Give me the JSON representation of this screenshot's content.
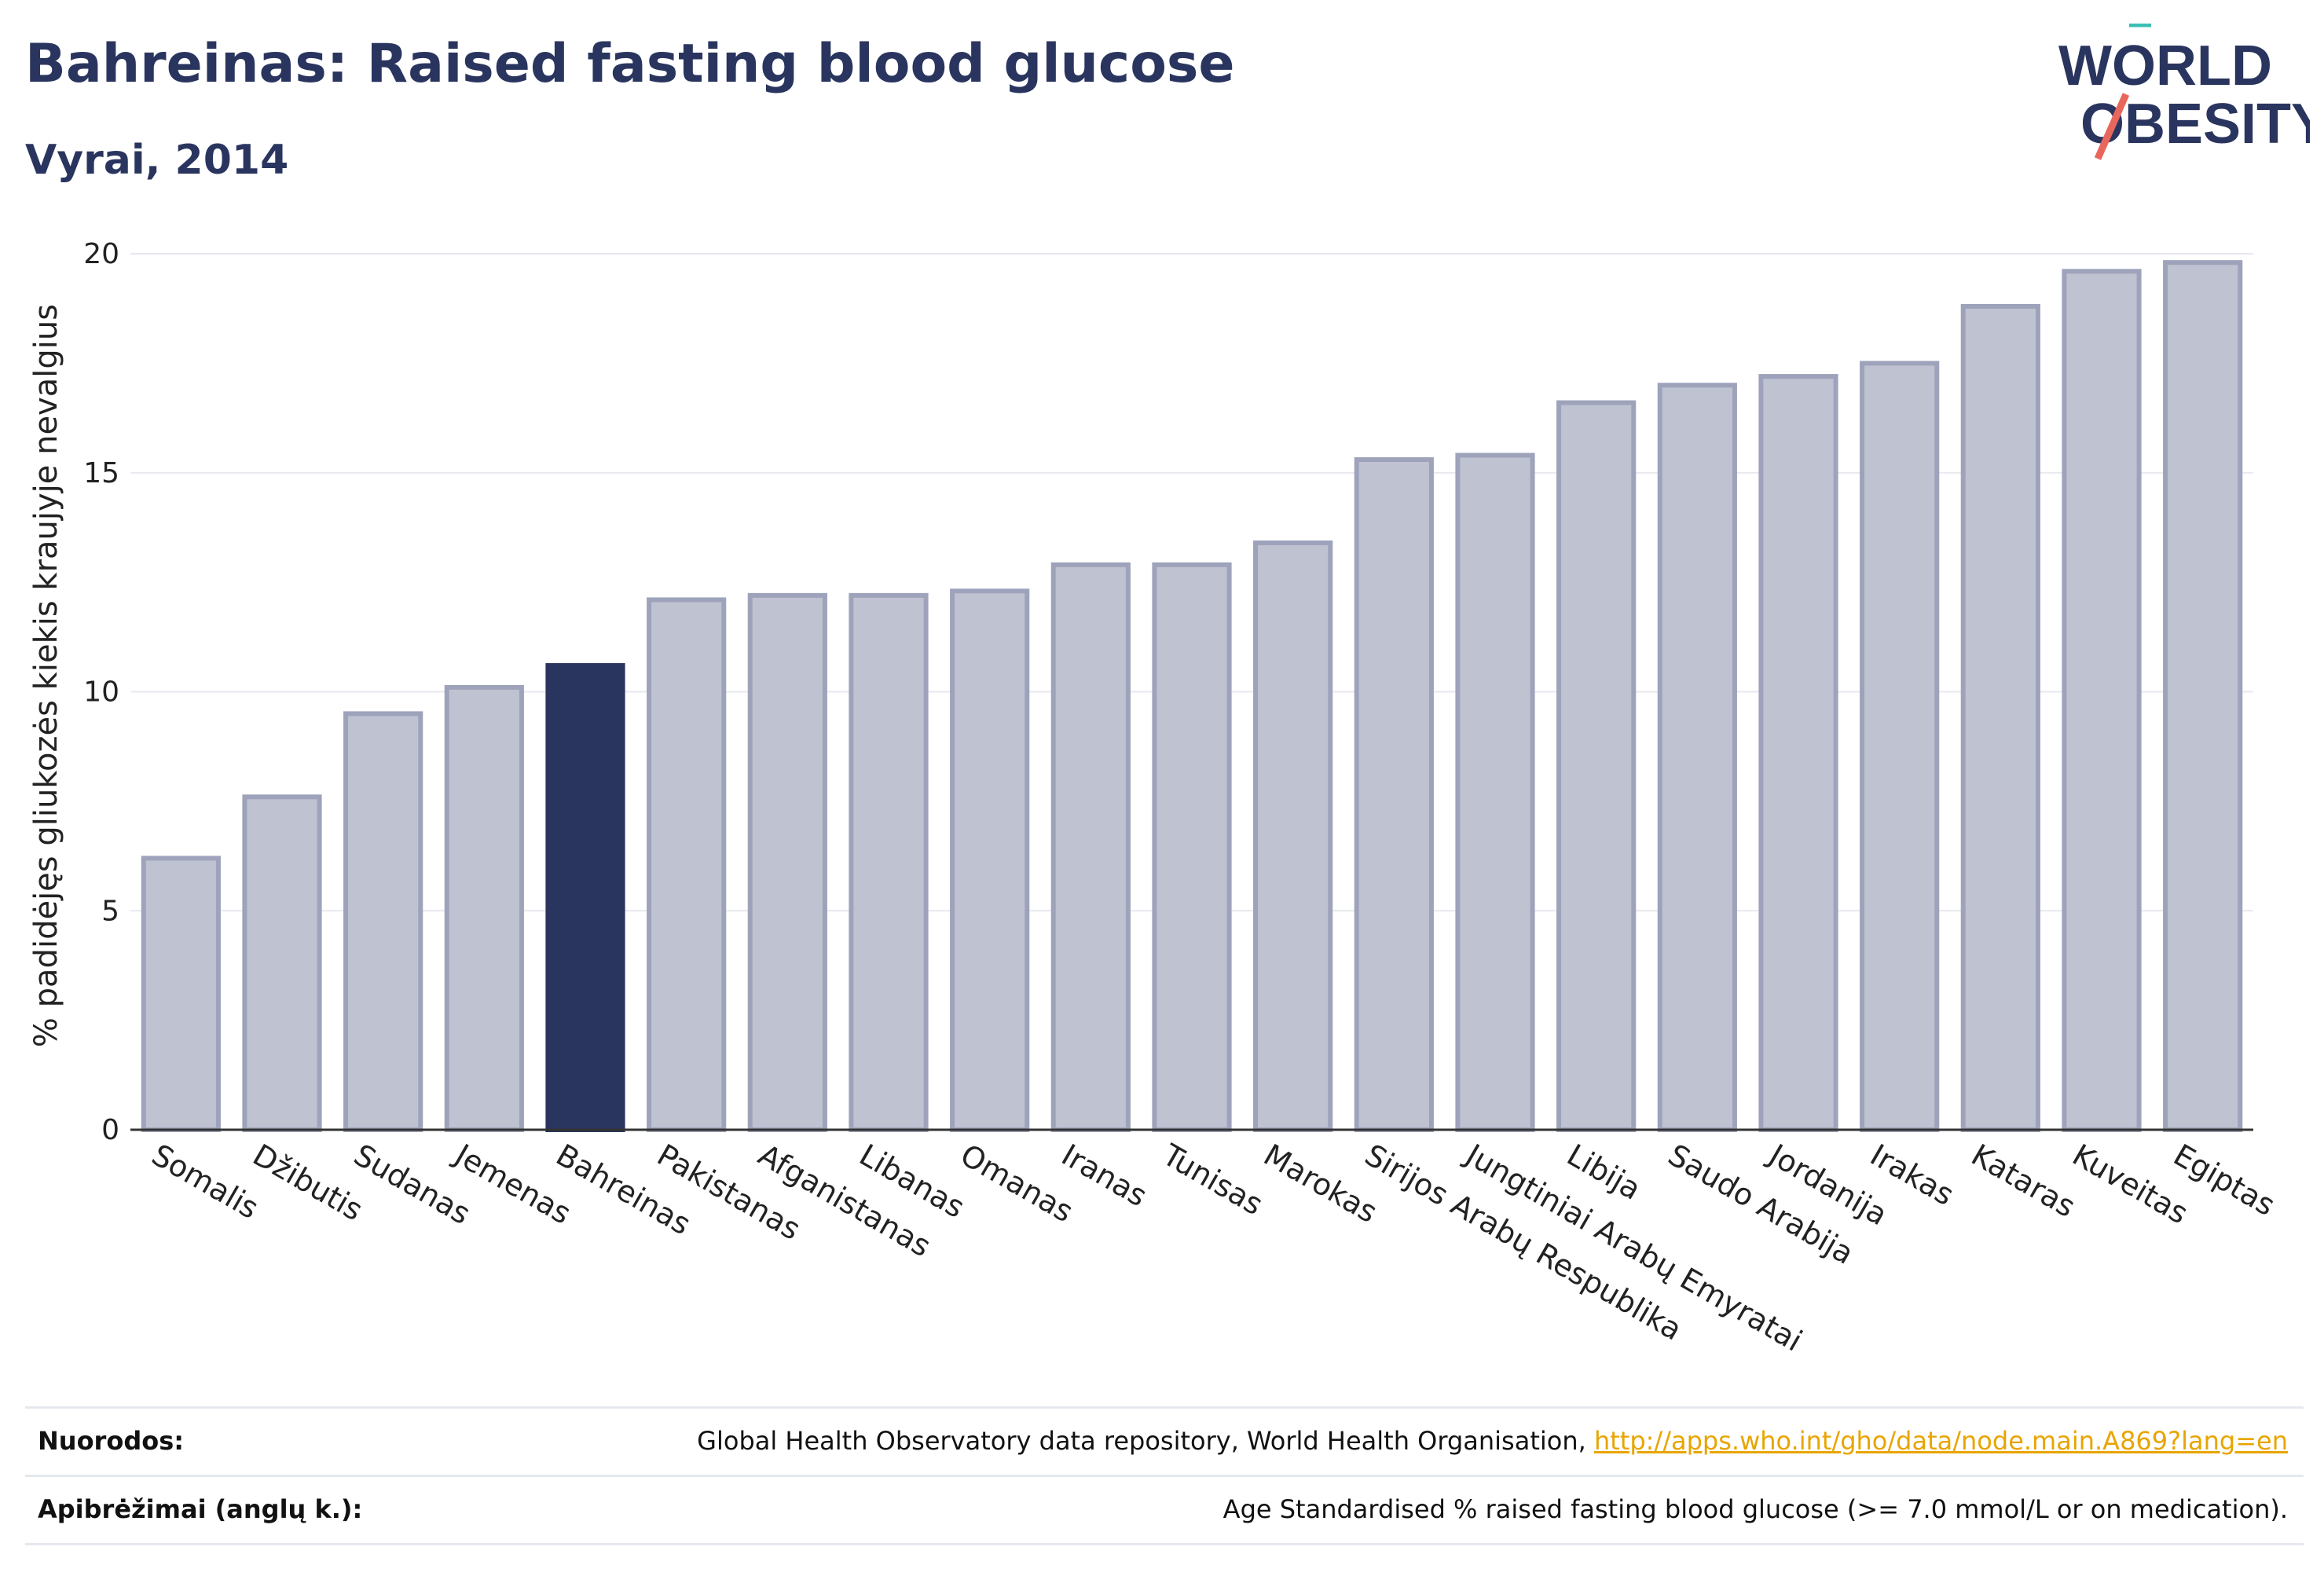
{
  "header": {
    "title": "Bahreinas: Raised fasting blood glucose",
    "subtitle": "Vyrai, 2014"
  },
  "logo": {
    "line1": "WORLD",
    "line2": "OBESITY",
    "icon": "world-obesity-slash-logo"
  },
  "colors": {
    "highlight": "#2a355f",
    "bar": "#bfc2d0",
    "bar_stroke": "#9ea3bb",
    "grid": "#e8e9ef",
    "accent_teal": "#3bbfb3",
    "accent_red": "#e8675c",
    "link": "#e8a500"
  },
  "chart_data": {
    "type": "bar",
    "ylabel": "% padidėjęs gliukozės kiekis kraujyje nevalgius",
    "ylim": [
      0,
      20
    ],
    "yticks": [
      0,
      5,
      10,
      15,
      20
    ],
    "highlight": "Bahreinas",
    "categories": [
      "Somalis",
      "Džibutis",
      "Sudanas",
      "Jemenas",
      "Bahreinas",
      "Pakistanas",
      "Afganistanas",
      "Libanas",
      "Omanas",
      "Iranas",
      "Tunisas",
      "Marokas",
      "Sirijos Arabų Respublika",
      "Jungtiniai Arabų Emyratai",
      "Libija",
      "Saudo Arabija",
      "Jordanija",
      "Irakas",
      "Kataras",
      "Kuveitas",
      "Egiptas"
    ],
    "values": [
      6.2,
      7.6,
      9.5,
      10.1,
      10.6,
      12.1,
      12.2,
      12.2,
      12.3,
      12.9,
      12.9,
      13.4,
      15.3,
      15.4,
      16.6,
      17.0,
      17.2,
      17.5,
      18.8,
      19.6,
      19.8
    ]
  },
  "footer": {
    "sources_label": "Nuorodos:",
    "sources_text": "Global Health Observatory data repository, World Health Organisation, ",
    "sources_link": "http://apps.who.int/gho/data/node.main.A869?lang=en",
    "definitions_label": "Apibrėžimai (anglų k.):",
    "definitions_text": "Age Standardised % raised fasting blood glucose (>= 7.0 mmol/L or on medication)."
  }
}
